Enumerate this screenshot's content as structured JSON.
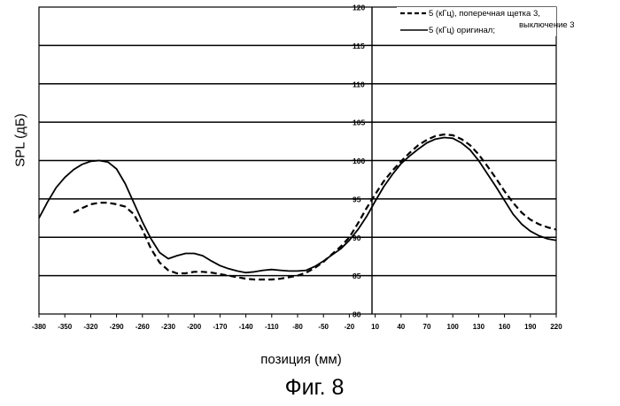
{
  "chart_data": {
    "type": "line",
    "ylabel": "SPL (дБ)",
    "xlabel": "позиция (мм)",
    "caption": "Фиг. 8",
    "ylim": [
      80,
      120
    ],
    "xlim": [
      -380,
      220
    ],
    "y_ticks": [
      "80",
      "85",
      "90",
      "95",
      "100",
      "105",
      "110",
      "115",
      "120"
    ],
    "x_ticks": [
      "-380",
      "-350",
      "-320",
      "-290",
      "-260",
      "-230",
      "-200",
      "-170",
      "-140",
      "-110",
      "-80",
      "-50",
      "-20",
      "10",
      "40",
      "70",
      "100",
      "130",
      "160",
      "190",
      "220"
    ],
    "grid": true,
    "legend_position": "top-right",
    "legend": {
      "line1": "5 (кГц), поперечная щетка 3,",
      "line2": "выключение 3",
      "line3": "5 (кГц) оригинал;"
    },
    "series": [
      {
        "name": "5 (кГц), поперечная щетка 3, выключение 3",
        "style": "dashed",
        "x": [
          -340,
          -330,
          -320,
          -310,
          -300,
          -290,
          -280,
          -270,
          -260,
          -250,
          -240,
          -230,
          -220,
          -210,
          -200,
          -190,
          -180,
          -170,
          -160,
          -150,
          -140,
          -130,
          -120,
          -110,
          -100,
          -90,
          -80,
          -70,
          -60,
          -50,
          -40,
          -30,
          -20,
          -10,
          0,
          10,
          20,
          30,
          40,
          50,
          60,
          70,
          80,
          90,
          100,
          110,
          120,
          130,
          140,
          150,
          160,
          170,
          180,
          190,
          200,
          210,
          220
        ],
        "y": [
          93.2,
          93.8,
          94.3,
          94.5,
          94.5,
          94.3,
          94.0,
          93.0,
          91.0,
          88.5,
          86.7,
          85.7,
          85.3,
          85.3,
          85.5,
          85.5,
          85.4,
          85.2,
          85.0,
          84.8,
          84.6,
          84.5,
          84.5,
          84.5,
          84.6,
          84.8,
          85.0,
          85.4,
          86.0,
          86.8,
          87.8,
          88.8,
          90.0,
          91.8,
          93.8,
          95.6,
          97.3,
          98.7,
          99.9,
          101.0,
          102.0,
          102.7,
          103.2,
          103.4,
          103.3,
          102.8,
          102.0,
          100.8,
          99.3,
          97.7,
          96.0,
          94.5,
          93.2,
          92.3,
          91.7,
          91.3,
          91.0
        ]
      },
      {
        "name": "5 (кГц) оригинал;",
        "style": "solid",
        "x": [
          -380,
          -370,
          -360,
          -350,
          -340,
          -330,
          -320,
          -310,
          -300,
          -290,
          -280,
          -270,
          -260,
          -250,
          -240,
          -230,
          -220,
          -210,
          -200,
          -190,
          -180,
          -170,
          -160,
          -150,
          -140,
          -130,
          -120,
          -110,
          -100,
          -90,
          -80,
          -70,
          -60,
          -50,
          -40,
          -30,
          -20,
          -10,
          0,
          10,
          20,
          30,
          40,
          50,
          60,
          70,
          80,
          90,
          100,
          110,
          120,
          130,
          140,
          150,
          160,
          170,
          180,
          190,
          200,
          210,
          220
        ],
        "y": [
          92.5,
          94.6,
          96.5,
          97.8,
          98.8,
          99.5,
          99.9,
          100.0,
          99.8,
          98.9,
          97.0,
          94.5,
          92.0,
          89.8,
          88.0,
          87.2,
          87.6,
          87.9,
          87.9,
          87.6,
          86.9,
          86.3,
          85.9,
          85.6,
          85.4,
          85.5,
          85.7,
          85.8,
          85.7,
          85.6,
          85.6,
          85.7,
          86.2,
          86.9,
          87.7,
          88.5,
          89.6,
          91.0,
          92.7,
          94.7,
          96.6,
          98.2,
          99.6,
          100.6,
          101.5,
          102.3,
          102.8,
          103.0,
          102.9,
          102.3,
          101.4,
          100.0,
          98.3,
          96.6,
          94.8,
          93.0,
          91.7,
          90.8,
          90.2,
          89.8,
          89.6
        ]
      }
    ]
  }
}
